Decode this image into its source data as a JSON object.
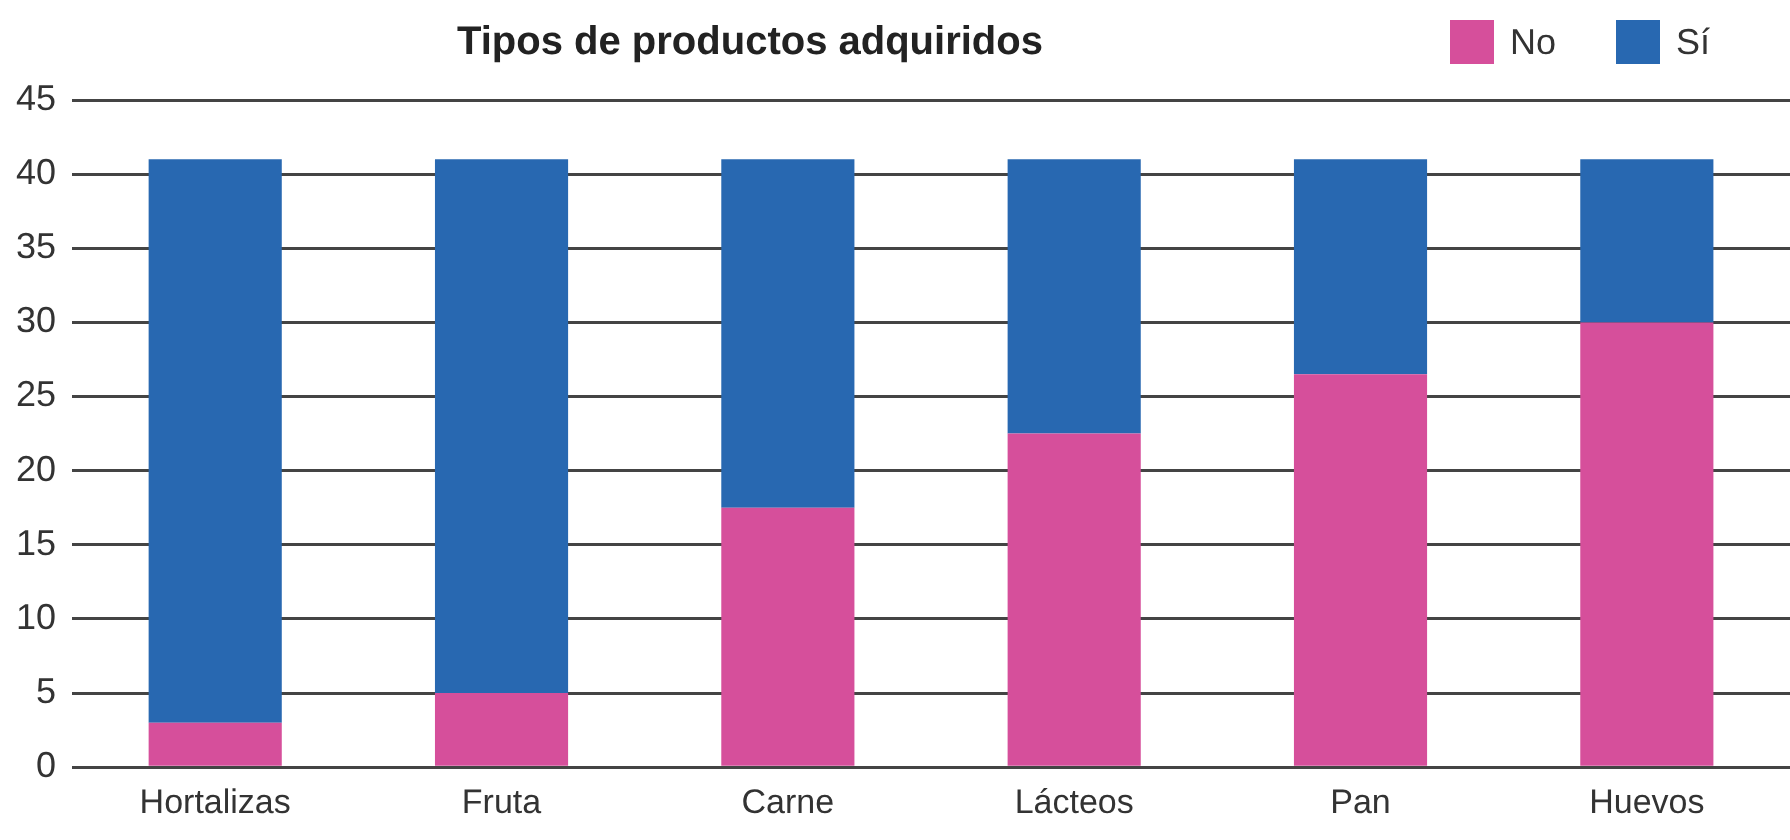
{
  "chart_data": {
    "type": "bar",
    "title": "Tipos de productos adquiridos",
    "stacked": true,
    "categories": [
      "Hortalizas",
      "Fruta",
      "Carne",
      "Lácteos",
      "Pan",
      "Huevos"
    ],
    "series": [
      {
        "name": "No",
        "color": "#d64f9b",
        "values": [
          3,
          5,
          17.5,
          22.5,
          26.5,
          30
        ]
      },
      {
        "name": "Sí",
        "color": "#2868b1",
        "values": [
          38,
          36,
          23.5,
          18.5,
          14.5,
          11
        ]
      }
    ],
    "ylim": [
      0,
      45
    ],
    "yticks": [
      0,
      5,
      10,
      15,
      20,
      25,
      30,
      35,
      40,
      45
    ],
    "grid": "y",
    "legend": "top right"
  }
}
